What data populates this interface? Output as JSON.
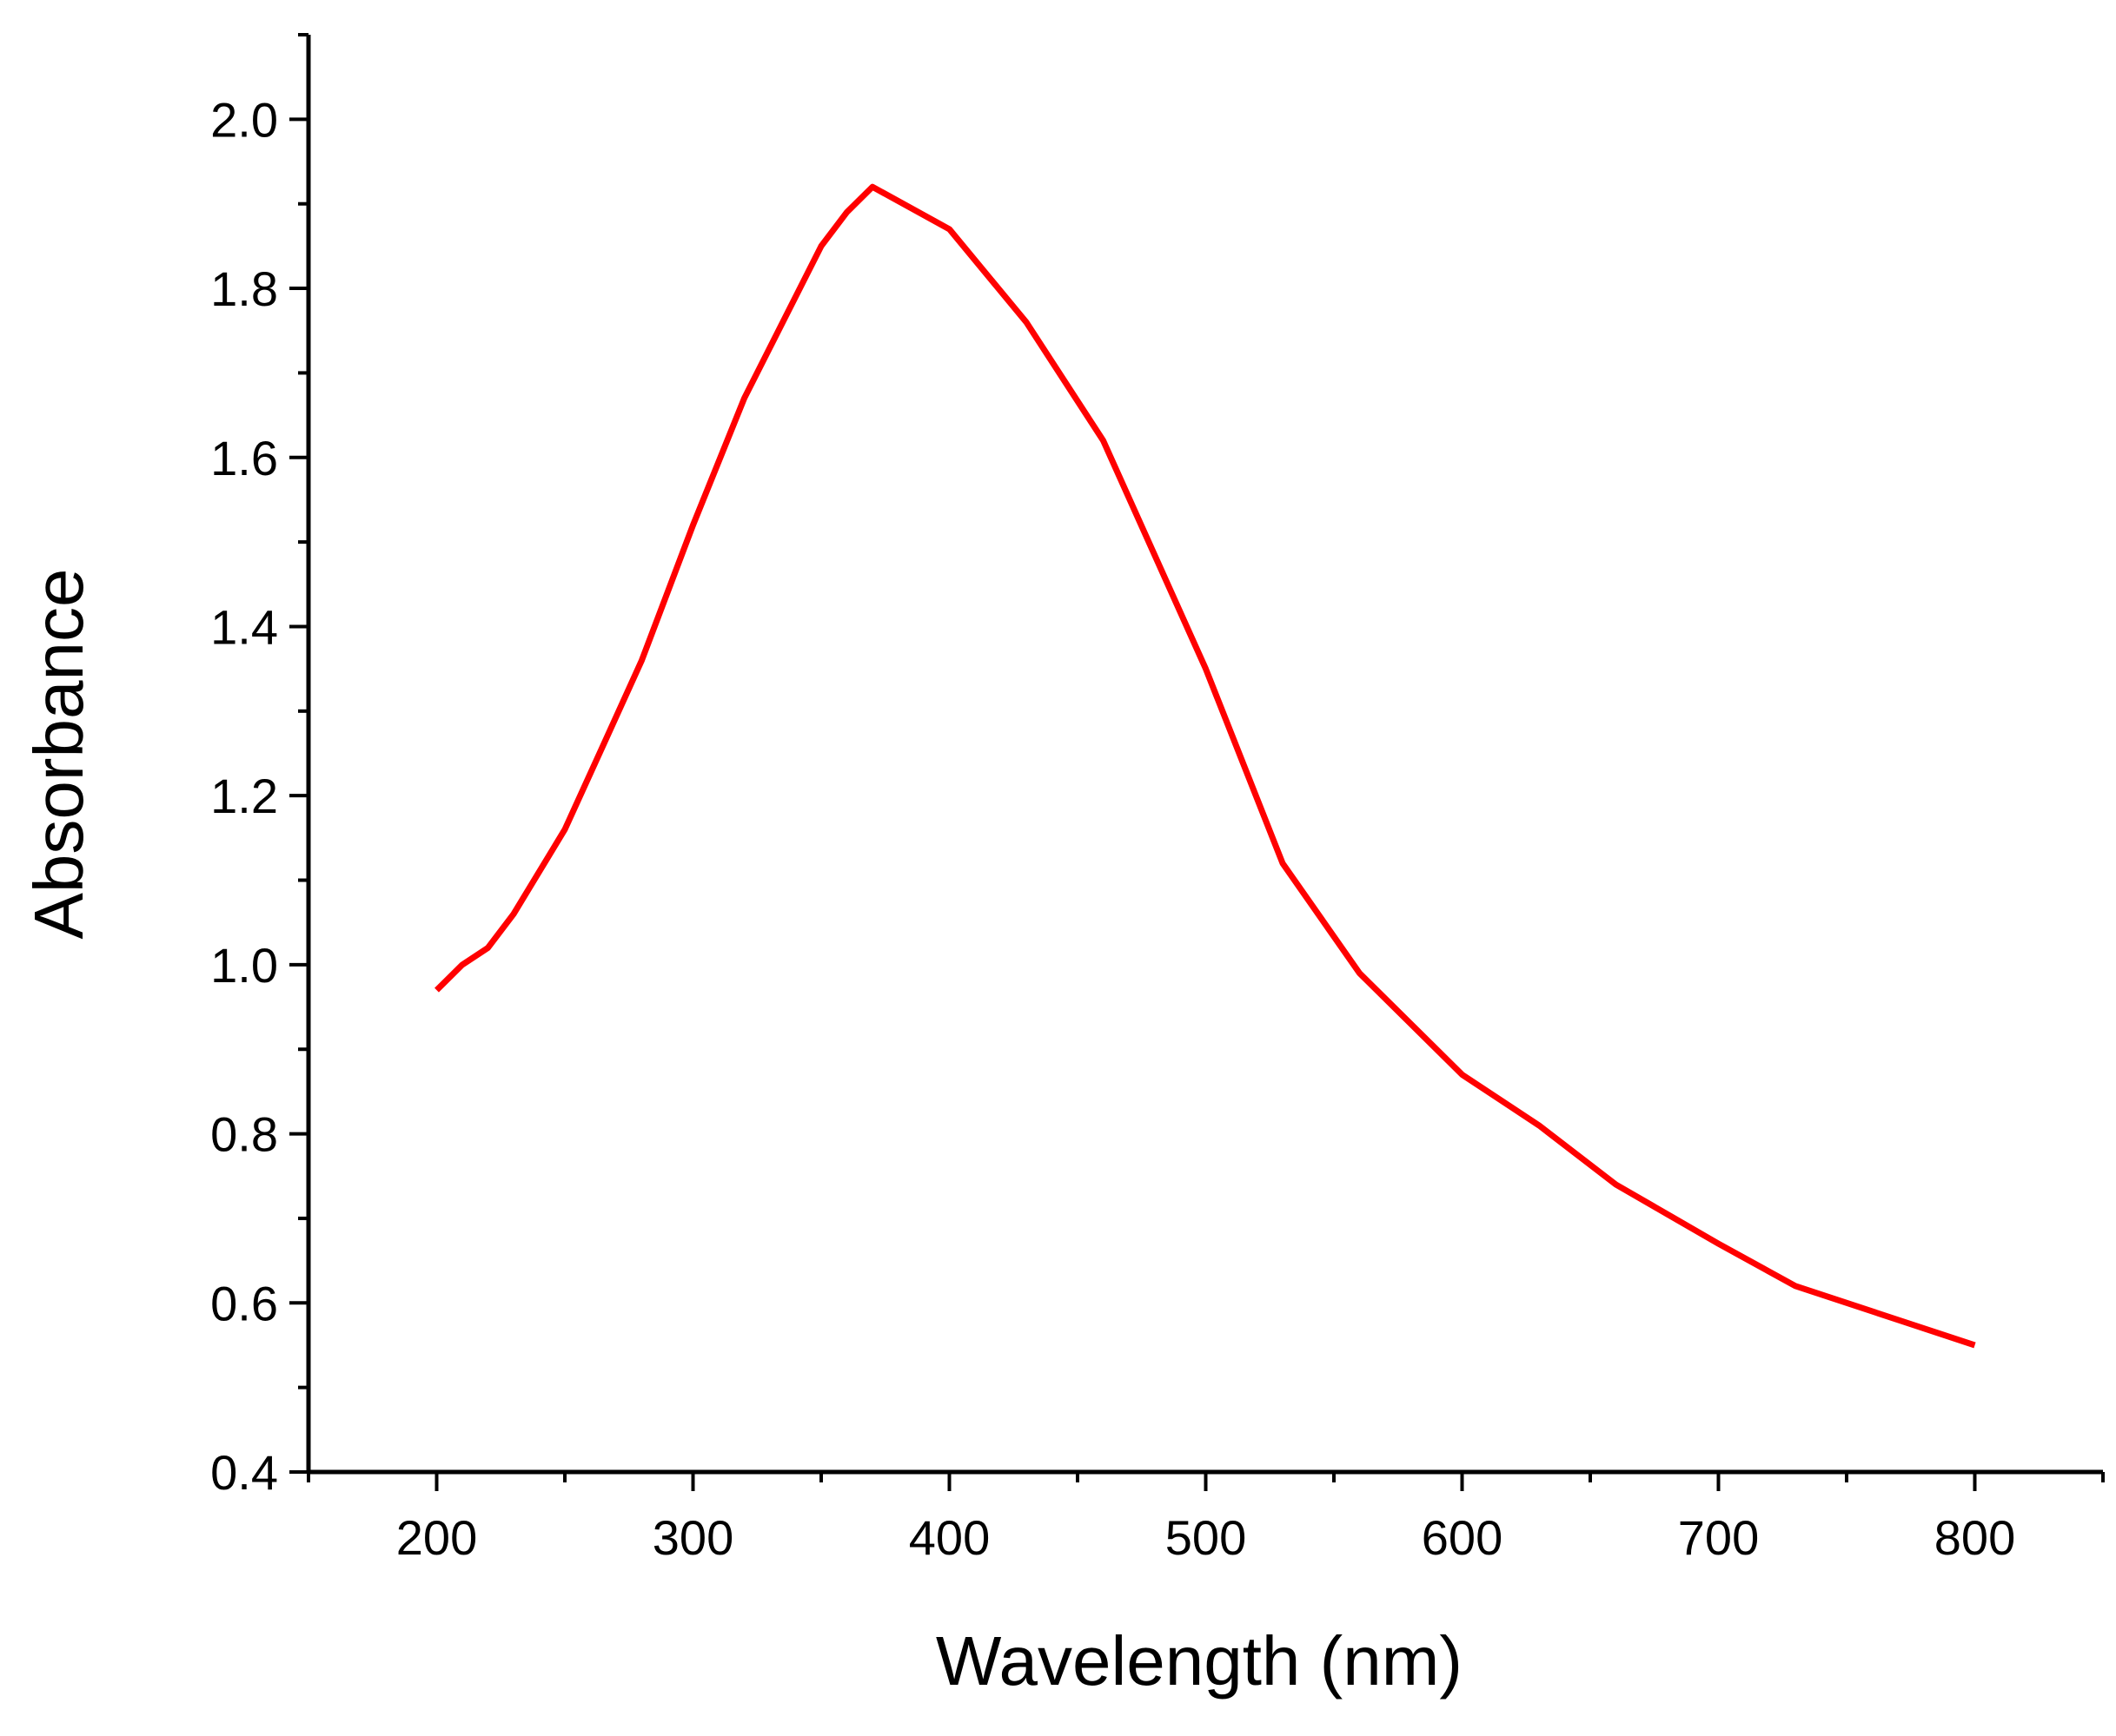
{
  "chart_data": {
    "type": "line",
    "title": "",
    "xlabel": "Wavelength (nm)",
    "ylabel": "Absorbance",
    "xlim": [
      150,
      850
    ],
    "ylim": [
      0.4,
      2.1
    ],
    "x_ticks": [
      200,
      300,
      400,
      500,
      600,
      700,
      800
    ],
    "y_ticks": [
      0.4,
      0.6,
      0.8,
      1.0,
      1.2,
      1.4,
      1.6,
      1.8,
      2.0
    ],
    "x_tick_labels": [
      "200",
      "300",
      "400",
      "500",
      "600",
      "700",
      "800"
    ],
    "y_tick_labels": [
      "0.4",
      "0.6",
      "0.8",
      "1.0",
      "1.2",
      "1.4",
      "1.6",
      "1.8",
      "2.0"
    ],
    "grid": false,
    "legend": "none",
    "series": [
      {
        "color": "#ff0000",
        "x": [
          200,
          210,
          220,
          230,
          250,
          265,
          280,
          300,
          320,
          340,
          350,
          360,
          370,
          400,
          430,
          460,
          500,
          530,
          560,
          600,
          630,
          660,
          700,
          730,
          800
        ],
        "y": [
          0.97,
          1.0,
          1.02,
          1.06,
          1.16,
          1.26,
          1.36,
          1.52,
          1.67,
          1.79,
          1.85,
          1.89,
          1.92,
          1.87,
          1.76,
          1.62,
          1.35,
          1.12,
          0.99,
          0.87,
          0.81,
          0.74,
          0.67,
          0.62,
          0.55
        ]
      }
    ]
  }
}
